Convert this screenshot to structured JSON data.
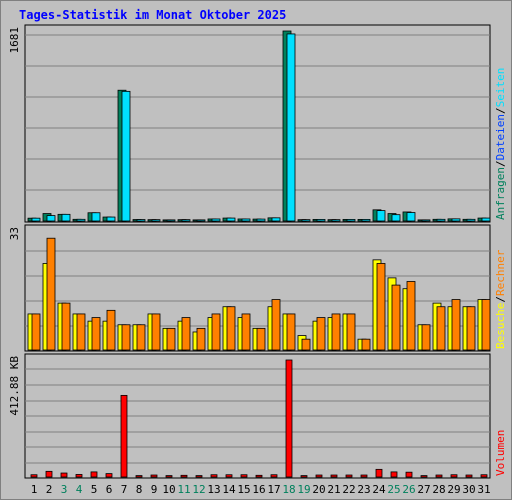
{
  "title": "Tages-Statistik im Monat Oktober 2025",
  "colors": {
    "background": "#c0c0c0",
    "hits": "#00805c",
    "files": "#0040ff",
    "pages": "#00e0ff",
    "visits": "#ffff00",
    "sites": "#ff8000",
    "volume": "#ff0000",
    "weekend_label": "#00805c",
    "weekday_label": "#000000"
  },
  "chart_data": [
    {
      "type": "bar",
      "panel": "requests",
      "y_max_label": "1681",
      "ylim": [
        0,
        1681
      ],
      "legend": [
        {
          "label": "Anfragen",
          "color": "#00805c"
        },
        {
          "label": "Dateien",
          "color": "#0040ff"
        },
        {
          "label": "Seiten",
          "color": "#00e0ff"
        }
      ],
      "series": [
        {
          "name": "Anfragen",
          "values": [
            25,
            66,
            59,
            15,
            73,
            35,
            1157,
            13,
            12,
            10,
            12,
            10,
            18,
            26,
            18,
            17,
            28,
            1681,
            12,
            14,
            12,
            14,
            14,
            99,
            66,
            80,
            10,
            15,
            19,
            15,
            26
          ]
        },
        {
          "name": "Seiten",
          "values": [
            25,
            48,
            59,
            15,
            73,
            35,
            1147,
            13,
            12,
            10,
            12,
            10,
            18,
            26,
            18,
            17,
            28,
            1655,
            12,
            14,
            12,
            14,
            14,
            92,
            56,
            75,
            10,
            15,
            19,
            15,
            26
          ]
        }
      ]
    },
    {
      "type": "bar",
      "panel": "visits",
      "y_max_label": "33",
      "ylim": [
        0,
        33
      ],
      "legend": [
        {
          "label": "Besuche",
          "color": "#ffff00"
        },
        {
          "label": "Rechner",
          "color": "#ff8000"
        }
      ],
      "series": [
        {
          "name": "Besuche",
          "values": [
            10,
            24,
            13,
            10,
            8,
            8,
            7,
            7,
            10,
            6,
            8,
            5,
            9,
            12,
            9,
            6,
            12,
            10,
            4,
            8,
            9,
            10,
            3,
            25,
            20,
            17,
            7,
            13,
            12,
            12,
            14
          ]
        },
        {
          "name": "Rechner",
          "values": [
            10,
            31,
            13,
            10,
            9,
            11,
            7,
            7,
            10,
            6,
            9,
            6,
            10,
            12,
            10,
            6,
            14,
            10,
            3,
            9,
            10,
            10,
            3,
            24,
            18,
            19,
            7,
            12,
            14,
            12,
            14
          ]
        }
      ]
    },
    {
      "type": "bar",
      "panel": "volume",
      "y_max_label": "412.88 KB",
      "ylim": [
        0,
        412.88
      ],
      "legend": [
        {
          "label": "Volumen",
          "color": "#ff0000"
        }
      ],
      "series": [
        {
          "name": "Volumen",
          "values": [
            8,
            20,
            14,
            9,
            18,
            12,
            288,
            5,
            7,
            5,
            6,
            5,
            8,
            8,
            8,
            6,
            8,
            412.88,
            5,
            7,
            7,
            7,
            7,
            27,
            18,
            17,
            5,
            7,
            8,
            7,
            8
          ]
        }
      ]
    }
  ],
  "x_axis": {
    "days": [
      "1",
      "2",
      "3",
      "4",
      "5",
      "6",
      "7",
      "8",
      "9",
      "10",
      "11",
      "12",
      "13",
      "14",
      "15",
      "16",
      "17",
      "18",
      "19",
      "20",
      "21",
      "22",
      "23",
      "24",
      "25",
      "26",
      "27",
      "28",
      "29",
      "30",
      "31"
    ],
    "weekend": [
      false,
      false,
      true,
      true,
      false,
      false,
      false,
      false,
      false,
      false,
      true,
      true,
      false,
      false,
      false,
      false,
      false,
      true,
      true,
      false,
      false,
      false,
      false,
      false,
      true,
      true,
      false,
      false,
      false,
      false,
      false
    ]
  }
}
